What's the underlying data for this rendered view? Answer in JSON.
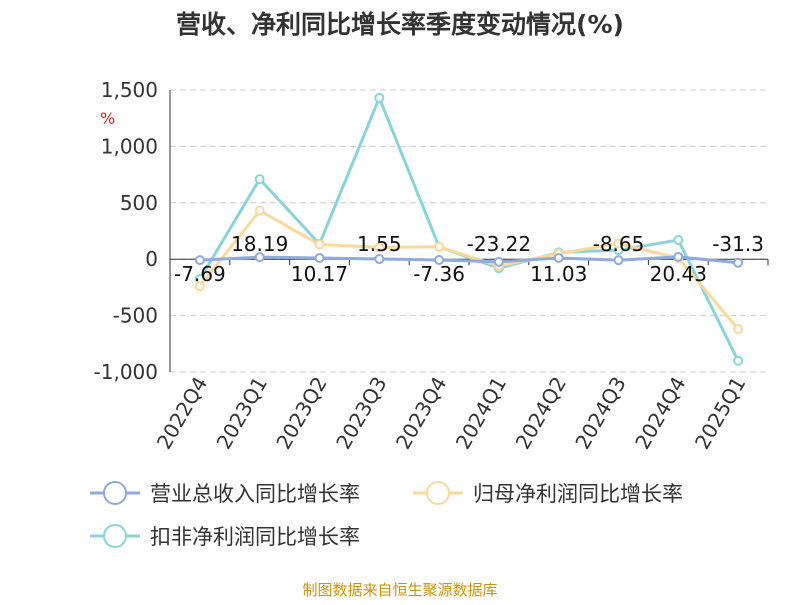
{
  "chart_data": {
    "type": "line",
    "title": "营收、净利同比增长率季度变动情况(%)",
    "ylabel": "%",
    "ylim": [
      -1000,
      1500
    ],
    "yticks": [
      "1,500",
      "1,000",
      "500",
      "0",
      "-500",
      "-1,000"
    ],
    "ytick_values": [
      1500,
      1000,
      500,
      0,
      -500,
      -1000
    ],
    "grid": true,
    "legend_position": "bottom",
    "categories": [
      "2022Q4",
      "2023Q1",
      "2023Q2",
      "2023Q3",
      "2023Q4",
      "2024Q1",
      "2024Q2",
      "2024Q3",
      "2024Q4",
      "2025Q1"
    ],
    "series": [
      {
        "name": "营业总收入同比增长率",
        "color": "#8faadc",
        "values": [
          -7.69,
          18.19,
          10.17,
          1.55,
          -7.36,
          -23.22,
          11.03,
          -8.65,
          20.43,
          -31.3
        ],
        "labels": [
          "-7.69",
          "18.19",
          "10.17",
          "1.55",
          "-7.36",
          "-23.22",
          "11.03",
          "-8.65",
          "20.43",
          "-31.3"
        ]
      },
      {
        "name": "归母净利润同比增长率",
        "color": "#fdd89b",
        "values": [
          -240,
          430,
          130,
          105,
          110,
          -60,
          50,
          140,
          10,
          -620
        ]
      },
      {
        "name": "扣非净利润同比增长率",
        "color": "#8ad4d8",
        "values": [
          -175,
          710,
          135,
          1430,
          110,
          -80,
          60,
          80,
          170,
          -900
        ]
      }
    ]
  },
  "footer": {
    "source": "制图数据来自恒生聚源数据库"
  }
}
